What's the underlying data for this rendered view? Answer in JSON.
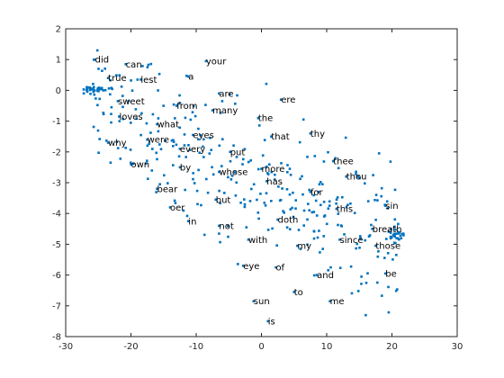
{
  "chart_data": {
    "type": "scatter",
    "xlim": [
      -30,
      30
    ],
    "ylim": [
      -8,
      2
    ],
    "xticks": [
      "-30",
      "-20",
      "-10",
      "0",
      "10",
      "20",
      "30"
    ],
    "yticks": [
      "2",
      "1",
      "0",
      "-1",
      "-2",
      "-3",
      "-4",
      "-5",
      "-6",
      "-7",
      "-8"
    ],
    "grid": false,
    "marker_color": "#0072bd",
    "axis_color": "#262626",
    "labeled_points": [
      {
        "text": "did",
        "x": -25.5,
        "y": 1.0
      },
      {
        "text": "can",
        "x": -20.8,
        "y": 0.85
      },
      {
        "text": "your",
        "x": -8.5,
        "y": 0.95
      },
      {
        "text": "true",
        "x": -23.5,
        "y": 0.4
      },
      {
        "text": "lest",
        "x": -18.5,
        "y": 0.35
      },
      {
        "text": "a",
        "x": -11.2,
        "y": 0.45
      },
      {
        "text": "are",
        "x": -6.5,
        "y": -0.1
      },
      {
        "text": "ere",
        "x": 3.0,
        "y": -0.3
      },
      {
        "text": "sweet",
        "x": -22.0,
        "y": -0.35
      },
      {
        "text": "from",
        "x": -13.0,
        "y": -0.5
      },
      {
        "text": "many",
        "x": -7.5,
        "y": -0.65
      },
      {
        "text": "loves",
        "x": -21.8,
        "y": -0.85
      },
      {
        "text": "the",
        "x": -0.5,
        "y": -0.9
      },
      {
        "text": "what",
        "x": -16.0,
        "y": -1.1
      },
      {
        "text": "eyes",
        "x": -10.5,
        "y": -1.45
      },
      {
        "text": "thy",
        "x": 7.5,
        "y": -1.4
      },
      {
        "text": "why",
        "x": -23.5,
        "y": -1.7
      },
      {
        "text": "were",
        "x": -17.5,
        "y": -1.6
      },
      {
        "text": "every",
        "x": -12.5,
        "y": -1.9
      },
      {
        "text": "that",
        "x": 1.5,
        "y": -1.5
      },
      {
        "text": "put",
        "x": -4.8,
        "y": -2.0
      },
      {
        "text": "thee",
        "x": 11.0,
        "y": -2.3
      },
      {
        "text": "own",
        "x": -20.0,
        "y": -2.4
      },
      {
        "text": "by",
        "x": -12.5,
        "y": -2.5
      },
      {
        "text": "whose",
        "x": -6.5,
        "y": -2.65
      },
      {
        "text": "more",
        "x": 0.0,
        "y": -2.55
      },
      {
        "text": "thou",
        "x": 13.0,
        "y": -2.8
      },
      {
        "text": "has",
        "x": 0.8,
        "y": -2.95
      },
      {
        "text": "bear",
        "x": -16.0,
        "y": -3.2
      },
      {
        "text": "for",
        "x": 7.5,
        "y": -3.3
      },
      {
        "text": "but",
        "x": -7.0,
        "y": -3.55
      },
      {
        "text": "sin",
        "x": 19.0,
        "y": -3.75
      },
      {
        "text": "this",
        "x": 11.5,
        "y": -3.85
      },
      {
        "text": "oer",
        "x": -14.0,
        "y": -3.8
      },
      {
        "text": "doth",
        "x": 2.5,
        "y": -4.2
      },
      {
        "text": "in",
        "x": -11.2,
        "y": -4.25
      },
      {
        "text": "not",
        "x": -6.5,
        "y": -4.4
      },
      {
        "text": "breath",
        "x": 17.0,
        "y": -4.5
      },
      {
        "text": "with",
        "x": -2.0,
        "y": -4.85
      },
      {
        "text": "since",
        "x": 12.0,
        "y": -4.85
      },
      {
        "text": "my",
        "x": 5.5,
        "y": -5.05
      },
      {
        "text": "those",
        "x": 17.5,
        "y": -5.05
      },
      {
        "text": "eye",
        "x": -2.8,
        "y": -5.7
      },
      {
        "text": "of",
        "x": 2.2,
        "y": -5.75
      },
      {
        "text": "be",
        "x": 19.0,
        "y": -5.95
      },
      {
        "text": "and",
        "x": 8.5,
        "y": -6.0
      },
      {
        "text": "to",
        "x": 5.0,
        "y": -6.55
      },
      {
        "text": "sun",
        "x": -1.2,
        "y": -6.85
      },
      {
        "text": "me",
        "x": 10.5,
        "y": -6.85
      },
      {
        "text": "is",
        "x": 1.0,
        "y": -7.5
      }
    ]
  }
}
